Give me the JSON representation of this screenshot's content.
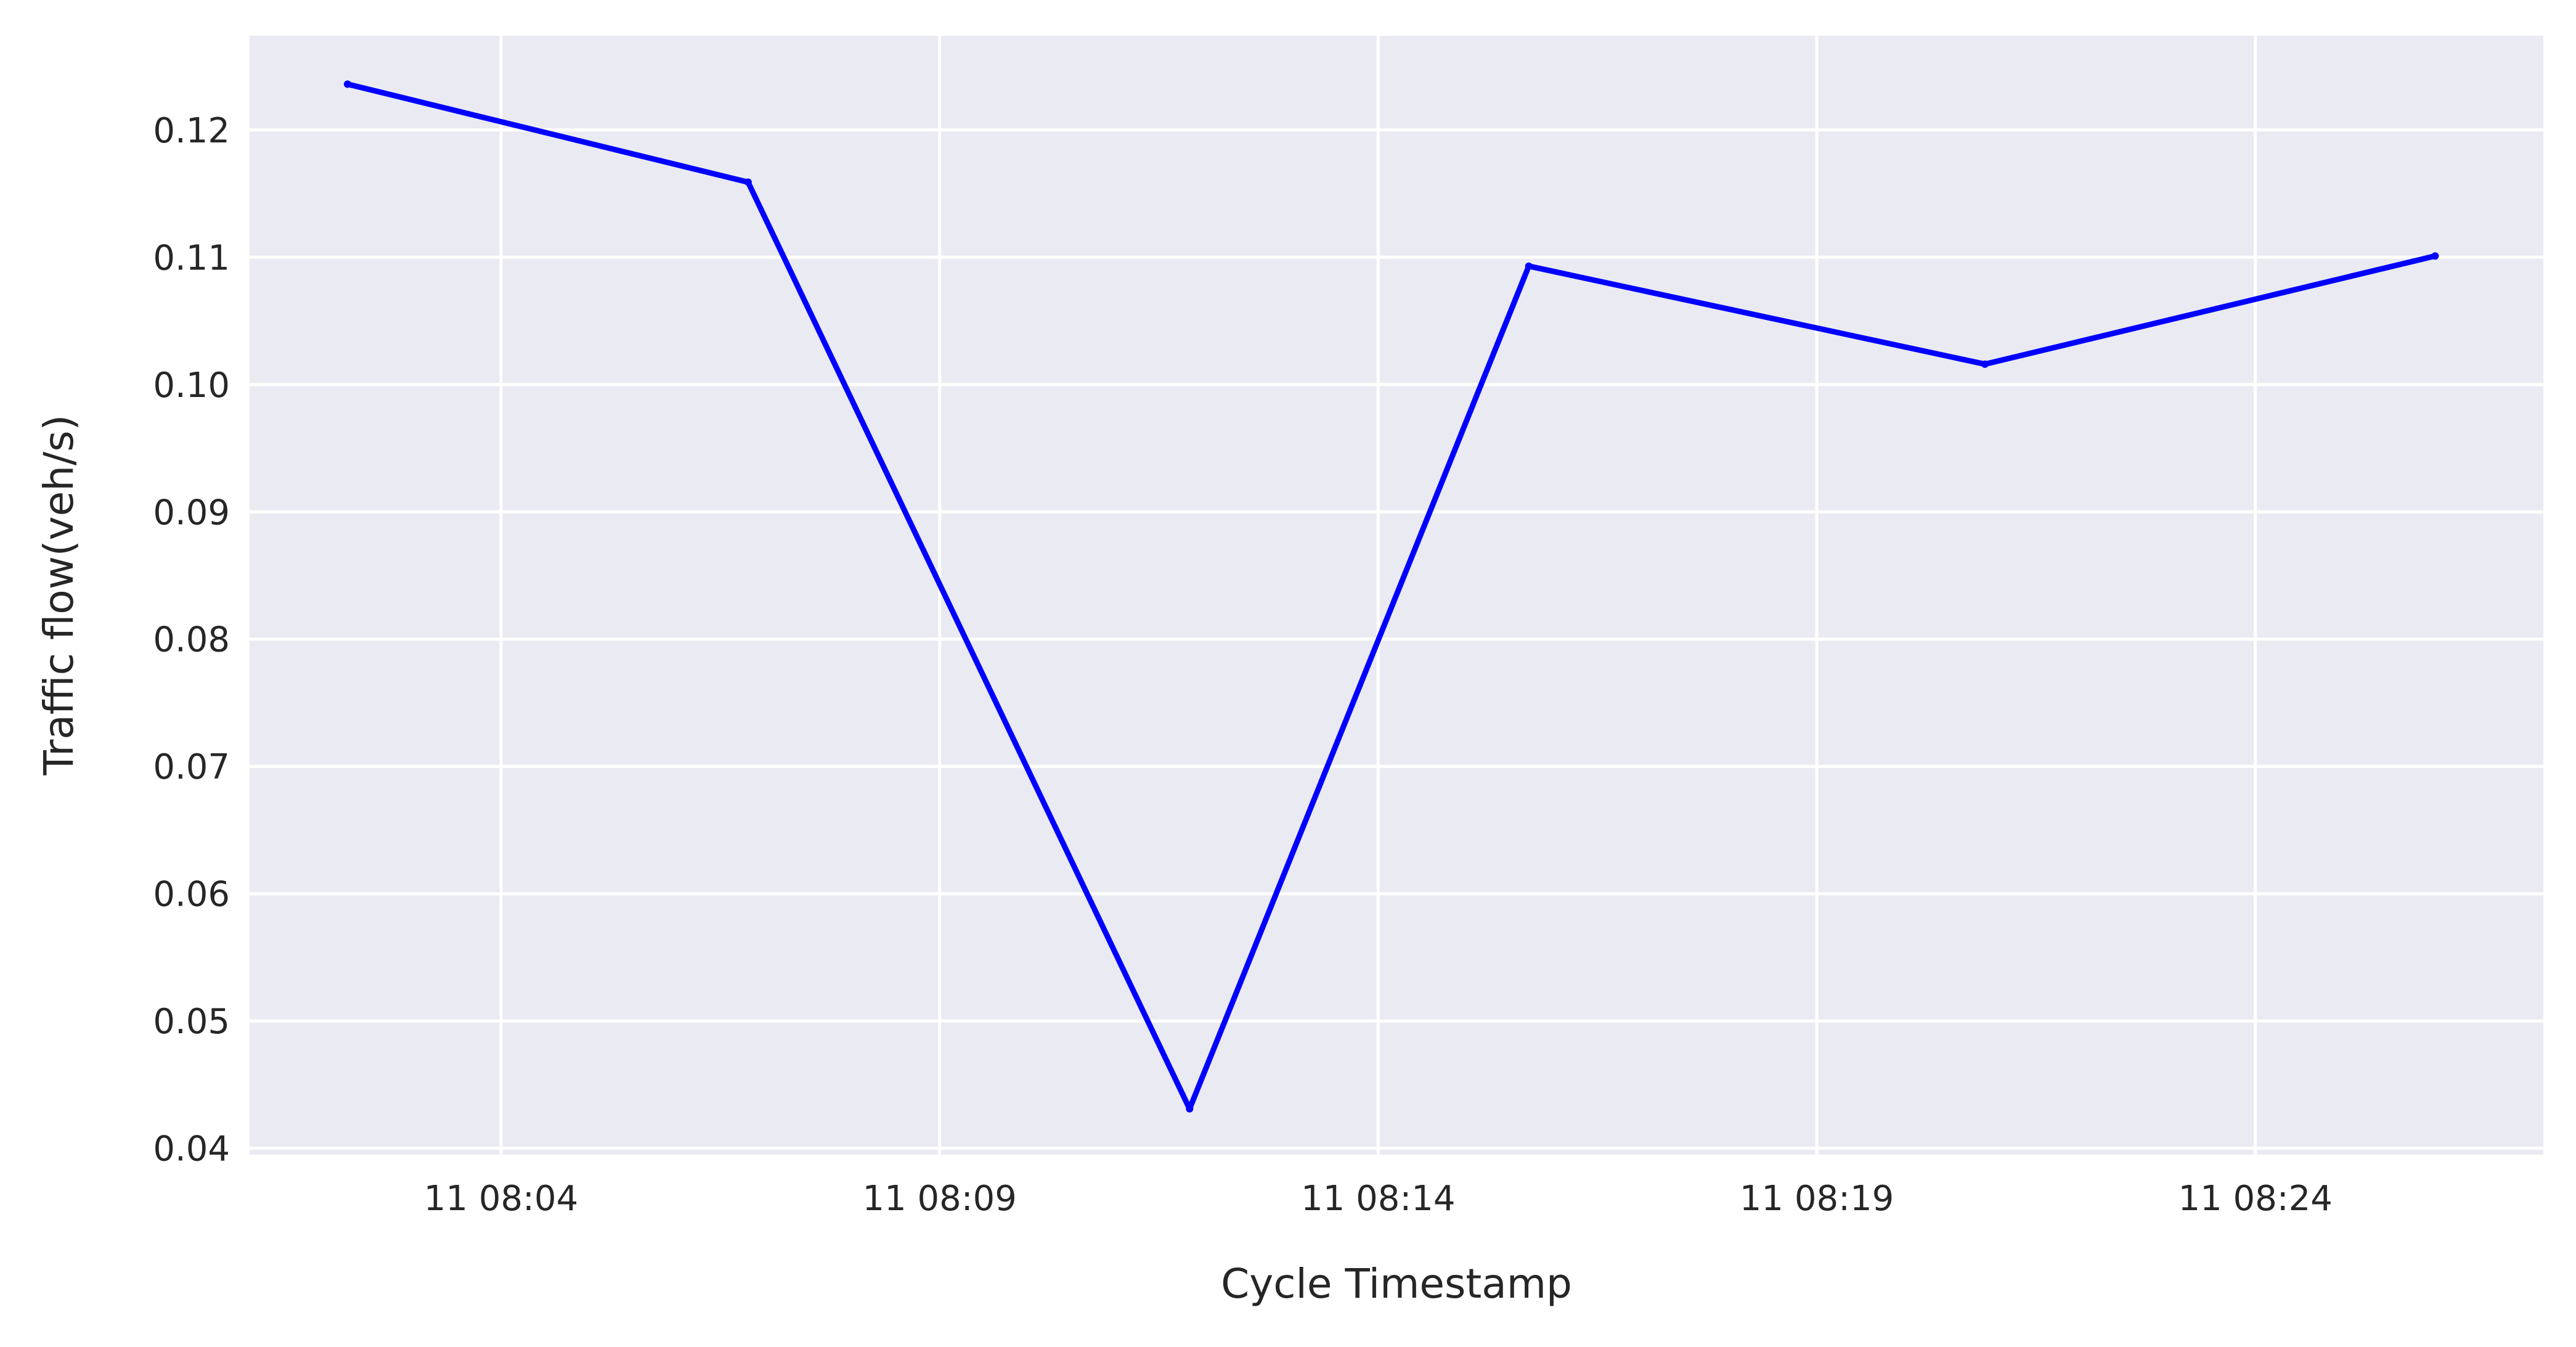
{
  "chart_data": {
    "type": "line",
    "title": "",
    "xlabel": "Cycle Timestamp",
    "ylabel": "Traffic flow(veh/s)",
    "x_axis_type": "time",
    "x_tick_labels": [
      "11 08:04",
      "11 08:09",
      "11 08:14",
      "11 08:19",
      "11 08:24"
    ],
    "y_tick_labels": [
      "0.04",
      "0.05",
      "0.06",
      "0.07",
      "0.08",
      "0.09",
      "0.10",
      "0.11",
      "0.12"
    ],
    "ylim": [
      0.0395,
      0.1274
    ],
    "xlim": [
      "08:01:08",
      "08:27:17"
    ],
    "grid": true,
    "legend": "none",
    "colors": {
      "background": "#eaeaf2",
      "grid": "#ffffff",
      "line": "#0000ff"
    },
    "series": [
      {
        "x": [
          "08:02:15",
          "08:06:49",
          "08:11:51",
          "08:15:43",
          "08:20:55",
          "08:26:03"
        ],
        "values": [
          0.1236,
          0.1159,
          0.0431,
          0.1093,
          0.1016,
          0.1101
        ]
      }
    ]
  }
}
